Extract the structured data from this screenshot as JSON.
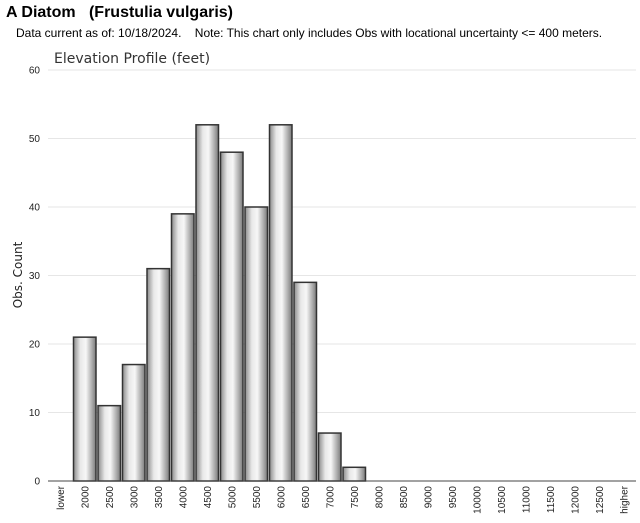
{
  "header": {
    "title": "A Diatom   (Frustulia vulgaris)",
    "note": "Data current as of: 10/18/2024.    Note: This chart only includes Obs with locational uncertainty <= 400 meters."
  },
  "colors": {
    "bar_stroke": "#333333",
    "grid": "#e6e6e6",
    "axis": "#444444"
  },
  "chart_data": {
    "type": "bar",
    "title": "Elevation Profile (feet)",
    "xlabel": "",
    "ylabel": "Obs. Count",
    "ylim": [
      0,
      60
    ],
    "yticks": [
      0,
      10,
      20,
      30,
      40,
      50,
      60
    ],
    "grid": true,
    "categories": [
      "lower",
      "2000",
      "2500",
      "3000",
      "3500",
      "4000",
      "4500",
      "5000",
      "5500",
      "6000",
      "6500",
      "7000",
      "7500",
      "8000",
      "8500",
      "9000",
      "9500",
      "10000",
      "10500",
      "11000",
      "11500",
      "12000",
      "12500",
      "higher"
    ],
    "values": [
      0,
      21,
      11,
      17,
      31,
      39,
      52,
      48,
      40,
      52,
      29,
      7,
      2,
      0,
      0,
      0,
      0,
      0,
      0,
      0,
      0,
      0,
      0,
      0
    ]
  }
}
